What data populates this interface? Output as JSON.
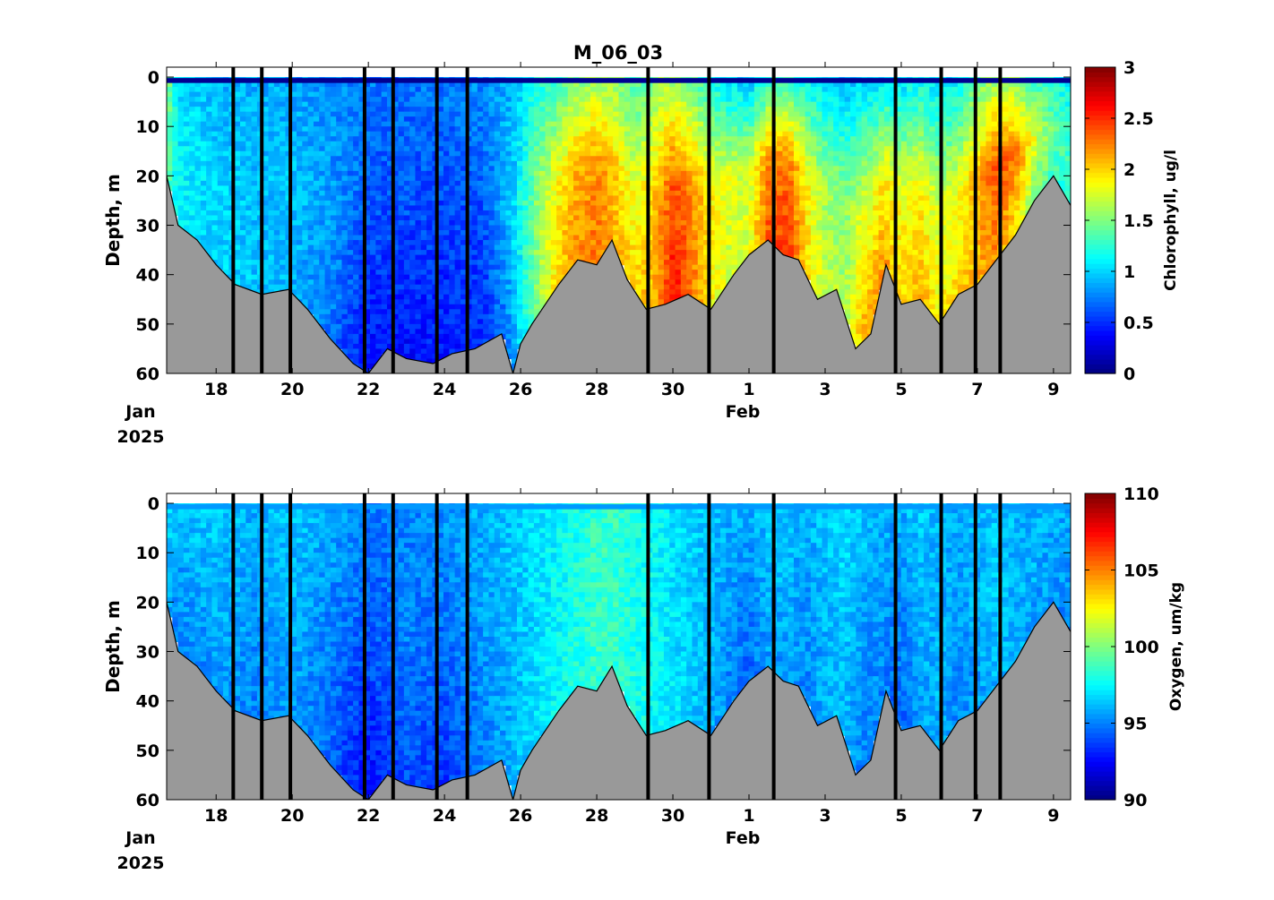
{
  "title": "M_06_03",
  "chart_data": [
    {
      "type": "heatmap",
      "variable": "chlorophyll",
      "title": "M_06_03",
      "ylabel": "Depth, m",
      "colorbar_label": "Chlorophyll, ug/l",
      "clim": [
        0,
        3
      ],
      "colorbar_ticks": [
        0,
        0.5,
        1,
        1.5,
        2,
        2.5,
        3
      ],
      "colorbar_tick_labels": [
        "0",
        "0.5",
        "1",
        "1.5",
        "2",
        "2.5",
        "3"
      ],
      "colormap": "jet",
      "ylim": [
        60,
        -2
      ],
      "yticks": [
        0,
        10,
        20,
        30,
        40,
        50,
        60
      ],
      "x_range_days": [
        16.7,
        40.45
      ],
      "x_date_start": "2025-01-16",
      "xtick_days": [
        18,
        20,
        22,
        24,
        26,
        28,
        30,
        32,
        34,
        36,
        38,
        40
      ],
      "xtick_labels": [
        "18",
        "20",
        "22",
        "24",
        "26",
        "28",
        "30",
        "1",
        "3",
        "5",
        "7",
        "9"
      ],
      "month_labels": [
        {
          "text": "Jan",
          "year": "2025"
        },
        {
          "text": "Feb"
        }
      ],
      "surface_value": 0.05,
      "seafloor_color": "#999999",
      "gap_lines_days": [
        18.45,
        19.2,
        19.95,
        21.9,
        22.65,
        23.8,
        24.6,
        29.35,
        30.95,
        32.65,
        35.85,
        37.05,
        37.95,
        38.6
      ],
      "bottom_depth": {
        "days": [
          16.7,
          17.0,
          17.5,
          18.0,
          18.5,
          19.2,
          19.9,
          20.4,
          21.0,
          21.6,
          22.0,
          22.5,
          23.0,
          23.7,
          24.2,
          24.8,
          25.5,
          25.8,
          26.0,
          26.3,
          27.0,
          27.5,
          28.0,
          28.4,
          28.8,
          29.3,
          29.8,
          30.4,
          31.0,
          31.6,
          32.0,
          32.5,
          32.9,
          33.3,
          33.8,
          34.3,
          34.8,
          35.2,
          35.6,
          36.0,
          36.5,
          37.0,
          37.5,
          38.0,
          38.5,
          39.0,
          39.5,
          40.0,
          40.45
        ],
        "depths": [
          20,
          30,
          33,
          38,
          42,
          44,
          43,
          47,
          53,
          58,
          60,
          55,
          57,
          58,
          56,
          55,
          52,
          60,
          54,
          50,
          42,
          37,
          38,
          33,
          41,
          47,
          46,
          44,
          47,
          40,
          36,
          33,
          36,
          37,
          45,
          43,
          55,
          52,
          38,
          46,
          45,
          50,
          44,
          42,
          37,
          32,
          25,
          20,
          26
        ]
      },
      "columns": {
        "days": [
          16.7,
          17.0,
          18.0,
          19.0,
          20.0,
          21.0,
          22.0,
          23.0,
          24.0,
          25.0,
          25.8,
          26.5,
          27.0,
          27.5,
          28.0,
          28.5,
          29.0,
          29.5,
          30.0,
          30.5,
          31.0,
          31.5,
          32.0,
          32.5,
          33.0,
          33.5,
          34.0,
          34.5,
          35.0,
          35.5,
          36.0,
          36.5,
          37.0,
          37.5,
          38.0,
          38.5,
          39.0,
          39.5,
          40.0,
          40.45
        ],
        "near_surface": [
          1.6,
          1.0,
          0.9,
          0.9,
          0.85,
          0.8,
          0.75,
          0.7,
          0.75,
          0.8,
          0.9,
          1.2,
          1.3,
          1.5,
          1.6,
          1.5,
          1.3,
          1.5,
          1.6,
          1.4,
          1.2,
          1.0,
          0.9,
          1.2,
          1.3,
          1.1,
          1.0,
          0.9,
          1.0,
          1.0,
          1.0,
          1.1,
          1.0,
          1.1,
          1.4,
          1.6,
          1.5,
          1.3,
          1.2,
          1.1
        ],
        "mid_depth": [
          1.5,
          1.1,
          1.0,
          0.95,
          0.95,
          0.85,
          0.6,
          0.6,
          0.55,
          0.6,
          1.0,
          1.6,
          1.9,
          2.1,
          2.2,
          2.0,
          1.8,
          2.0,
          2.4,
          2.2,
          1.9,
          1.8,
          1.7,
          2.2,
          2.3,
          1.9,
          1.6,
          1.5,
          1.8,
          1.9,
          1.8,
          1.9,
          1.7,
          1.8,
          2.1,
          2.4,
          2.3,
          1.8,
          1.4,
          1.3
        ],
        "near_bottom": [
          1.4,
          1.1,
          1.0,
          0.95,
          0.9,
          0.7,
          0.4,
          0.4,
          0.45,
          0.5,
          0.8,
          1.6,
          2.0,
          2.2,
          2.3,
          2.1,
          2.0,
          2.1,
          2.6,
          2.3,
          1.9,
          1.7,
          1.8,
          2.4,
          2.5,
          2.0,
          1.7,
          1.6,
          2.1,
          2.2,
          2.0,
          2.1,
          1.9,
          2.0,
          2.1,
          2.2,
          1.9,
          1.5,
          1.3,
          1.2
        ]
      }
    },
    {
      "type": "heatmap",
      "variable": "oxygen",
      "ylabel": "Depth, m",
      "colorbar_label": "Oxygen, um/kg",
      "clim": [
        90,
        110
      ],
      "colorbar_ticks": [
        90,
        95,
        100,
        105,
        110
      ],
      "colorbar_tick_labels": [
        "90",
        "95",
        "100",
        "105",
        "110"
      ],
      "colormap": "jet",
      "ylim": [
        60,
        -2
      ],
      "yticks": [
        0,
        10,
        20,
        30,
        40,
        50,
        60
      ],
      "x_range_days": [
        16.7,
        40.45
      ],
      "x_date_start": "2025-01-16",
      "xtick_days": [
        18,
        20,
        22,
        24,
        26,
        28,
        30,
        32,
        34,
        36,
        38,
        40
      ],
      "xtick_labels": [
        "18",
        "20",
        "22",
        "24",
        "26",
        "28",
        "30",
        "1",
        "3",
        "5",
        "7",
        "9"
      ],
      "month_labels": [
        {
          "text": "Jan",
          "year": "2025"
        },
        {
          "text": "Feb"
        }
      ],
      "surface_value": 95.5,
      "seafloor_color": "#999999",
      "gap_lines_days": [
        18.45,
        19.2,
        19.95,
        21.9,
        22.65,
        23.8,
        24.6,
        29.35,
        30.95,
        32.65,
        35.85,
        37.05,
        37.95,
        38.6
      ],
      "bottom_depth": {
        "days": [
          16.7,
          17.0,
          17.5,
          18.0,
          18.5,
          19.2,
          19.9,
          20.4,
          21.0,
          21.6,
          22.0,
          22.5,
          23.0,
          23.7,
          24.2,
          24.8,
          25.5,
          25.8,
          26.0,
          26.3,
          27.0,
          27.5,
          28.0,
          28.4,
          28.8,
          29.3,
          29.8,
          30.4,
          31.0,
          31.6,
          32.0,
          32.5,
          32.9,
          33.3,
          33.8,
          34.3,
          34.8,
          35.2,
          35.6,
          36.0,
          36.5,
          37.0,
          37.5,
          38.0,
          38.5,
          39.0,
          39.5,
          40.0,
          40.45
        ],
        "depths": [
          20,
          30,
          33,
          38,
          42,
          44,
          43,
          47,
          53,
          58,
          60,
          55,
          57,
          58,
          56,
          55,
          52,
          60,
          54,
          50,
          42,
          37,
          38,
          33,
          41,
          47,
          46,
          44,
          47,
          40,
          36,
          33,
          36,
          37,
          45,
          43,
          55,
          52,
          38,
          46,
          45,
          50,
          44,
          42,
          37,
          32,
          25,
          20,
          26
        ]
      },
      "columns": {
        "days": [
          16.7,
          17.0,
          18.0,
          19.0,
          20.0,
          21.0,
          22.0,
          23.0,
          24.0,
          25.0,
          25.8,
          26.5,
          27.0,
          27.5,
          28.0,
          28.5,
          29.0,
          29.5,
          30.0,
          30.5,
          31.0,
          31.5,
          32.0,
          32.5,
          33.0,
          33.5,
          34.0,
          34.5,
          35.0,
          35.5,
          36.0,
          36.5,
          37.0,
          37.5,
          38.0,
          38.5,
          39.0,
          39.5,
          40.0,
          40.45
        ],
        "near_surface": [
          97.0,
          96.5,
          96.5,
          96.0,
          96.5,
          96.0,
          95.0,
          95.0,
          95.5,
          96.0,
          96.5,
          97.0,
          97.5,
          98.0,
          98.5,
          98.5,
          98.0,
          97.5,
          97.0,
          96.5,
          96.5,
          96.0,
          96.0,
          96.5,
          96.5,
          96.0,
          96.5,
          97.0,
          96.5,
          96.0,
          96.0,
          96.5,
          96.0,
          96.0,
          96.0,
          96.5,
          96.0,
          96.0,
          96.0,
          96.0
        ],
        "mid_depth": [
          96.5,
          95.5,
          96.0,
          95.5,
          96.0,
          95.0,
          94.0,
          95.0,
          94.5,
          95.5,
          96.0,
          97.0,
          97.5,
          98.0,
          98.5,
          98.5,
          98.0,
          97.5,
          97.0,
          96.5,
          96.0,
          95.5,
          95.0,
          96.0,
          96.0,
          95.5,
          96.0,
          96.5,
          95.5,
          95.5,
          95.0,
          96.0,
          96.0,
          95.5,
          96.0,
          96.5,
          96.0,
          96.0,
          95.5,
          95.5
        ],
        "near_bottom": [
          96.0,
          95.0,
          95.5,
          95.0,
          95.5,
          94.5,
          92.5,
          94.0,
          93.5,
          95.0,
          96.0,
          97.0,
          97.5,
          98.0,
          98.5,
          98.5,
          98.0,
          97.5,
          97.0,
          96.5,
          96.0,
          95.0,
          94.5,
          95.5,
          95.5,
          95.0,
          96.0,
          96.0,
          95.0,
          95.0,
          94.5,
          95.5,
          96.0,
          95.0,
          95.5,
          96.0,
          96.0,
          95.5,
          95.5,
          95.0
        ]
      }
    }
  ]
}
